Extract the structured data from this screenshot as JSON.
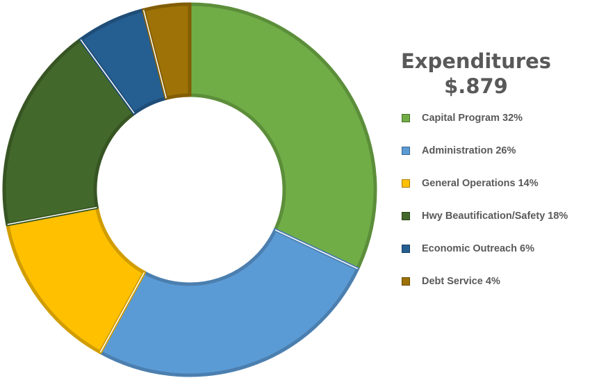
{
  "chart_data": {
    "type": "pie",
    "title": "Expenditures",
    "subtitle": "$.879",
    "legend_position": "right",
    "slices": [
      {
        "label": "Capital Program",
        "value": 32,
        "legend_text": "Capital Program 32%",
        "color": "#70AD47"
      },
      {
        "label": "Administration",
        "value": 26,
        "legend_text": "Administration 26%",
        "color": "#5B9BD5"
      },
      {
        "label": "General Operations",
        "value": 14,
        "legend_text": "General Operations 14%",
        "color": "#FFC000"
      },
      {
        "label": "Hwy Beautification/Safety",
        "value": 18,
        "legend_text": "Hwy Beautification/Safety 18%",
        "color": "#43682B"
      },
      {
        "label": "Economic Outreach",
        "value": 6,
        "legend_text": "Economic Outreach 6%",
        "color": "#255E91"
      },
      {
        "label": "Debt Service",
        "value": 4,
        "legend_text": "Debt Service 4%",
        "color": "#9E7206"
      }
    ]
  }
}
